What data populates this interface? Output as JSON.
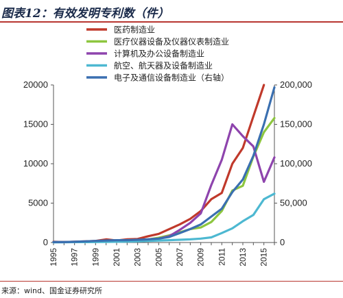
{
  "figure": {
    "title": "图表12：有效发明专利数（件）",
    "source": "来源：wind、国金证券研究所"
  },
  "chart_data": {
    "type": "line",
    "title": "有效发明专利数（件）",
    "x": [
      1995,
      1996,
      1997,
      1998,
      1999,
      2000,
      2001,
      2002,
      2003,
      2004,
      2005,
      2006,
      2007,
      2008,
      2009,
      2010,
      2011,
      2012,
      2013,
      2014,
      2015,
      2016
    ],
    "x_ticks": [
      1995,
      1997,
      1999,
      2001,
      2003,
      2005,
      2007,
      2009,
      2011,
      2013,
      2015
    ],
    "y_left": {
      "lim": [
        0,
        20000
      ],
      "ticks": [
        0,
        5000,
        10000,
        15000,
        20000
      ]
    },
    "y_right": {
      "lim": [
        0,
        200000
      ],
      "ticks": [
        "0",
        "50,000",
        "100,000",
        "150,000",
        "200,000"
      ]
    },
    "legend_position": "top-center",
    "grid": false,
    "series": [
      {
        "name": "医药制造业",
        "color": "#c0392b",
        "axis": "left",
        "values": [
          100,
          50,
          100,
          150,
          200,
          400,
          250,
          400,
          450,
          800,
          1100,
          1700,
          2300,
          3000,
          4000,
          5500,
          6300,
          10000,
          12000,
          16000,
          20000,
          null
        ]
      },
      {
        "name": "医疗仪器设备及仪器仪表制造业",
        "color": "#8dc63f",
        "axis": "left",
        "values": [
          50,
          50,
          80,
          100,
          100,
          150,
          200,
          250,
          300,
          400,
          600,
          900,
          1300,
          1700,
          1900,
          2600,
          4000,
          6600,
          7200,
          10900,
          14000,
          15800
        ]
      },
      {
        "name": "计算机及办公设备制造业",
        "color": "#8e44ad",
        "axis": "left",
        "values": [
          50,
          50,
          80,
          100,
          150,
          200,
          200,
          250,
          300,
          400,
          500,
          800,
          1600,
          2500,
          3700,
          7300,
          10500,
          15000,
          13500,
          12200,
          7700,
          10800
        ]
      },
      {
        "name": "航空、航天器及设备制造业",
        "color": "#4db8d1",
        "axis": "left",
        "values": [
          20,
          30,
          50,
          50,
          60,
          80,
          100,
          120,
          150,
          200,
          250,
          300,
          350,
          400,
          500,
          650,
          1200,
          1800,
          2700,
          3500,
          5500,
          6200
        ]
      },
      {
        "name": "电子及通信设备制造业（右轴）",
        "color": "#3a6fb0",
        "axis": "right",
        "values": [
          500,
          500,
          1000,
          1500,
          2000,
          2500,
          3000,
          3000,
          3500,
          4000,
          5000,
          7000,
          12000,
          17000,
          23000,
          33000,
          43000,
          64000,
          80000,
          110000,
          150000,
          197000
        ]
      }
    ]
  }
}
